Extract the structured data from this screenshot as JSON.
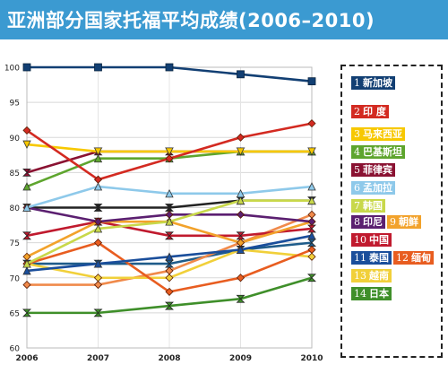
{
  "title": "亚洲部分国家托福平均成绩(2006–2010)",
  "chart_data": {
    "type": "line",
    "x": [
      "2006",
      "2007",
      "2008",
      "2009",
      "2010"
    ],
    "ylim": [
      60,
      100
    ],
    "yticks": [
      "60",
      "65",
      "70",
      "75",
      "80",
      "85",
      "90",
      "95",
      "100"
    ],
    "series": [
      {
        "name": "新加坡",
        "num": "1",
        "color": "#123f73",
        "marker": "square",
        "values": [
          100,
          100,
          100,
          99,
          98
        ]
      },
      {
        "name": "印 度",
        "num": "2",
        "color": "#d32a21",
        "marker": "diamond",
        "values": [
          91,
          84,
          87,
          90,
          92
        ]
      },
      {
        "name": "马来西亚",
        "num": "3",
        "color": "#f7c800",
        "marker": "triangle-down",
        "values": [
          89,
          88,
          88,
          88,
          88
        ]
      },
      {
        "name": "巴基斯坦",
        "num": "4",
        "color": "#5ea52e",
        "marker": "triangle",
        "values": [
          83,
          87,
          87,
          88,
          88
        ]
      },
      {
        "name": "菲律宾",
        "num": "5",
        "color": "#8a1232",
        "marker": "arrow",
        "values": [
          85,
          88,
          88,
          88,
          88
        ]
      },
      {
        "name": "孟加拉",
        "num": "6",
        "color": "#8ec9ea",
        "marker": "triangle",
        "values": [
          80,
          83,
          82,
          82,
          83
        ]
      },
      {
        "name": "韩国",
        "num": "7",
        "color": "#c8d84a",
        "marker": "triangle",
        "values": [
          72,
          77,
          78,
          81,
          81
        ]
      },
      {
        "name": "印尼",
        "num": "8",
        "color": "#5b1f70",
        "marker": "diamond",
        "values": [
          80,
          78,
          79,
          79,
          78
        ]
      },
      {
        "name": "朝鲜",
        "num": "9",
        "color": "#f2a22b",
        "marker": "diamond",
        "values": [
          73,
          78,
          78,
          75,
          78
        ]
      },
      {
        "name": "中国",
        "num": "10",
        "color": "#c01a2e",
        "marker": "arrow",
        "values": [
          76,
          78,
          76,
          76,
          77
        ]
      },
      {
        "name": "泰国",
        "num": "11",
        "color": "#1a4e9b",
        "marker": "triangle",
        "values": [
          71,
          72,
          73,
          74,
          76
        ]
      },
      {
        "name": "缅甸",
        "num": "12",
        "color": "#e85d20",
        "marker": "diamond",
        "values": [
          72,
          75,
          68,
          70,
          74
        ]
      },
      {
        "name": "越南",
        "num": "13",
        "color": "#f1d03a",
        "marker": "diamond",
        "values": [
          72,
          70,
          70,
          74,
          73
        ]
      },
      {
        "name": "日本",
        "num": "14",
        "color": "#3f8f2a",
        "marker": "arrow",
        "values": [
          65,
          65,
          66,
          67,
          70
        ]
      }
    ],
    "extra_series": [
      {
        "color": "#222222",
        "marker": "arrow",
        "values": [
          80,
          80,
          80,
          81,
          81
        ]
      },
      {
        "color": "#1f5c8a",
        "marker": "arrow",
        "values": [
          72,
          72,
          72,
          74,
          75
        ]
      },
      {
        "color": "#f08a4b",
        "marker": "diamond",
        "values": [
          69,
          69,
          71,
          75,
          79
        ]
      }
    ],
    "grid": true
  }
}
